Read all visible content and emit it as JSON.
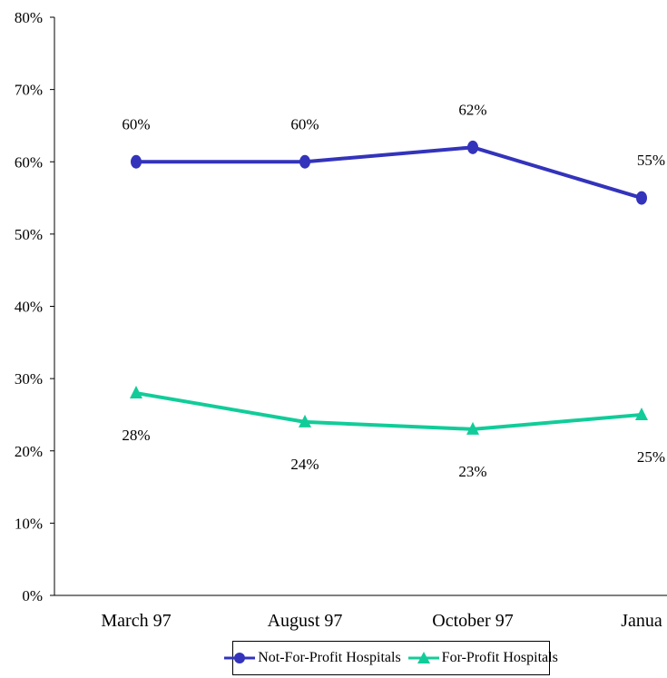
{
  "chart_data": {
    "type": "line",
    "categories": [
      "March 97",
      "August 97",
      "October 97",
      "Janua"
    ],
    "ylim": [
      0,
      80
    ],
    "yticks": [
      "0%",
      "10%",
      "20%",
      "30%",
      "40%",
      "50%",
      "60%",
      "70%",
      "80%"
    ],
    "grid": false,
    "legend_position": "bottom",
    "series": [
      {
        "name": "Not-For-Profit Hospitals",
        "values": [
          60,
          60,
          62,
          55
        ],
        "labels": [
          "60%",
          "60%",
          "62%",
          "55%"
        ],
        "color": "#3333bb",
        "marker": "circle"
      },
      {
        "name": "For-Profit Hospitals",
        "values": [
          28,
          24,
          23,
          25
        ],
        "labels": [
          "28%",
          "24%",
          "23%",
          "25%"
        ],
        "color": "#11cc99",
        "marker": "triangle"
      }
    ]
  }
}
